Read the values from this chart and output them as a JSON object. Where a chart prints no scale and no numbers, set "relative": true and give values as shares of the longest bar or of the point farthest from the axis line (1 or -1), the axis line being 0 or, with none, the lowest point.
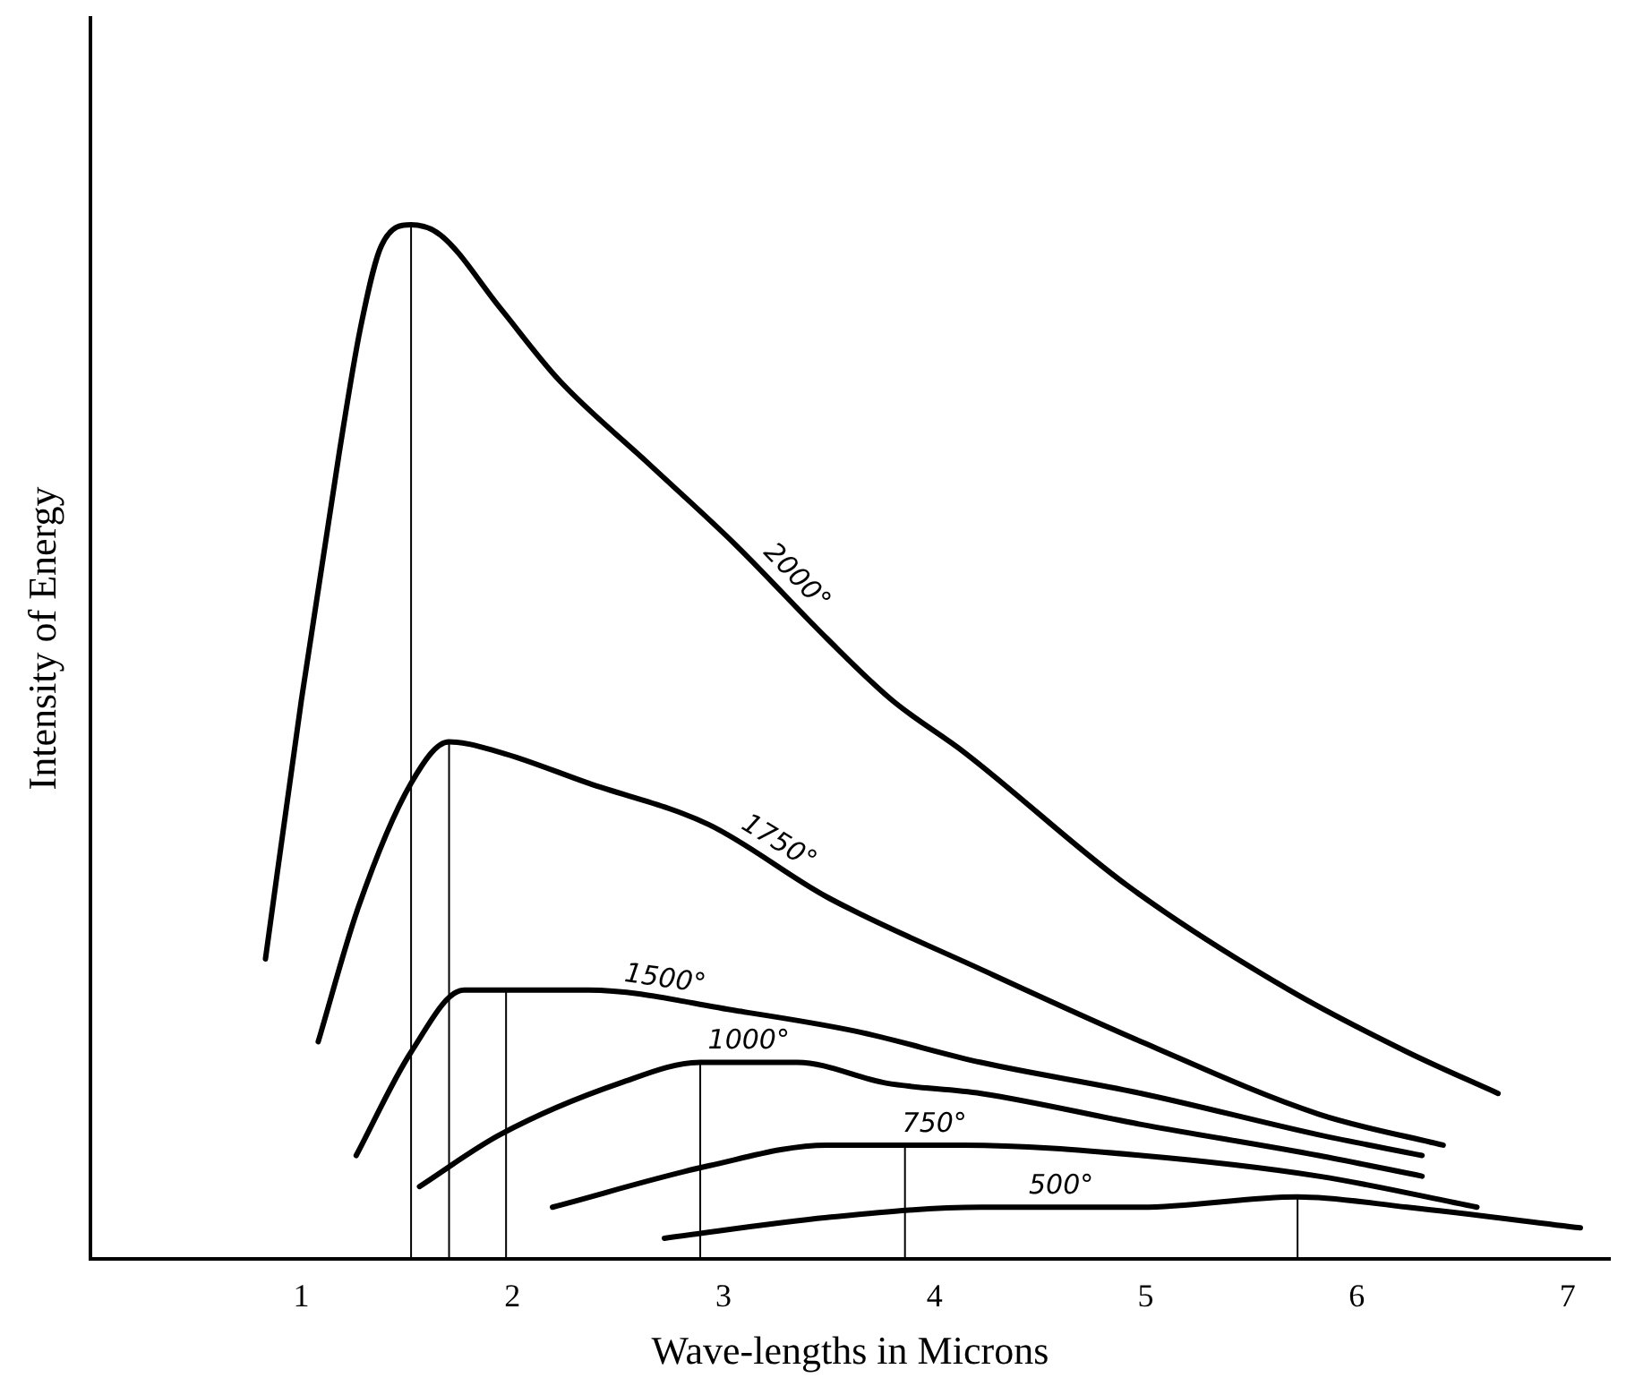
{
  "chart_data": {
    "type": "line",
    "xlabel": "Wave-lengths in Microns",
    "ylabel": "Intensity of Energy",
    "relative": true,
    "xlim": [
      0,
      7.2
    ],
    "xticks": [
      1,
      2,
      3,
      4,
      5,
      6,
      7
    ],
    "grid": false,
    "legend": false,
    "marker": "none",
    "line_style": "solid",
    "series": [
      {
        "name": "2000°",
        "color": "#000000",
        "x": [
          0.83,
          1.0,
          1.18,
          1.28,
          1.38,
          1.52,
          1.66,
          1.94,
          2.22,
          2.64,
          3.06,
          3.49,
          3.8,
          4.14,
          4.92,
          5.68,
          6.24,
          6.67
        ],
        "values": [
          0.29,
          0.54,
          0.78,
          0.9,
          0.98,
          1,
          0.99,
          0.92,
          0.85,
          0.77,
          0.69,
          0.6,
          0.54,
          0.49,
          0.36,
          0.26,
          0.2,
          0.16
        ]
      },
      {
        "name": "1750°",
        "color": "#000000",
        "x": [
          1.08,
          1.27,
          1.52,
          1.7,
          1.94,
          2.36,
          2.93,
          3.49,
          4.22,
          4.98,
          5.82,
          6.41
        ],
        "values": [
          0.21,
          0.34,
          0.46,
          0.5,
          0.49,
          0.46,
          0.42,
          0.35,
          0.28,
          0.21,
          0.14,
          0.11
        ]
      },
      {
        "name": "1500°",
        "color": "#000000",
        "x": [
          1.26,
          1.52,
          1.77,
          1.97,
          2.36,
          3.06,
          3.63,
          4.22,
          4.98,
          5.82,
          6.31
        ],
        "values": [
          0.1,
          0.2,
          0.26,
          0.26,
          0.26,
          0.24,
          0.22,
          0.19,
          0.16,
          0.12,
          0.1
        ]
      },
      {
        "name": "1000°",
        "color": "#000000",
        "x": [
          1.56,
          1.94,
          2.51,
          2.89,
          3.35,
          3.77,
          4.22,
          4.98,
          5.82,
          6.31
        ],
        "values": [
          0.07,
          0.12,
          0.17,
          0.19,
          0.19,
          0.17,
          0.16,
          0.13,
          0.1,
          0.08
        ]
      },
      {
        "name": "750°",
        "color": "#000000",
        "x": [
          2.19,
          2.93,
          3.49,
          3.86,
          4.14,
          4.98,
          5.82,
          6.57
        ],
        "values": [
          0.05,
          0.09,
          0.11,
          0.11,
          0.11,
          0.1,
          0.08,
          0.05
        ]
      },
      {
        "name": "500°",
        "color": "#000000",
        "x": [
          2.72,
          3.49,
          4.22,
          4.98,
          5.72,
          6.24,
          7.06
        ],
        "values": [
          0.02,
          0.04,
          0.05,
          0.05,
          0.06,
          0.05,
          0.03
        ]
      },
      {
        "color": "#000000",
        "x": [
          1.52,
          1.52
        ],
        "values": [
          0,
          1
        ]
      },
      {
        "color": "#000000",
        "x": [
          1.7,
          1.7
        ],
        "values": [
          0,
          0.5
        ]
      },
      {
        "color": "#000000",
        "x": [
          1.97,
          1.97
        ],
        "values": [
          0,
          0.26
        ]
      },
      {
        "color": "#000000",
        "x": [
          2.89,
          2.89
        ],
        "values": [
          0,
          0.19
        ]
      },
      {
        "color": "#000000",
        "x": [
          3.86,
          3.86
        ],
        "values": [
          0,
          0.11
        ]
      },
      {
        "color": "#000000",
        "x": [
          5.72,
          5.72
        ],
        "values": [
          0,
          0.06
        ]
      }
    ]
  }
}
